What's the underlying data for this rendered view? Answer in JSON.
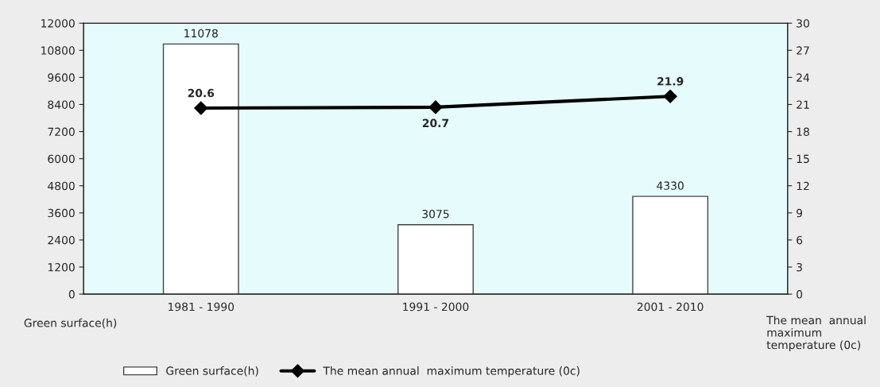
{
  "chart_data": {
    "type": "bar",
    "categories": [
      "1981 - 1990",
      "1991 - 2000",
      "2001 - 2010"
    ],
    "series": [
      {
        "name": "Green surface(h)",
        "color": "#ffffff",
        "values": [
          11078,
          3075,
          4330
        ]
      },
      {
        "name": "The mean annual  maximum temperature (0c)",
        "type": "line",
        "axis": "y2",
        "color": "#000000",
        "marker": "diamond",
        "line_style": "solid",
        "values": [
          20.6,
          20.7,
          21.9
        ]
      }
    ],
    "ylabel": "Green surface(h)",
    "y2label": "The mean  annual\nmaximum\ntemperature (0c)",
    "ylim": [
      0,
      12000
    ],
    "yticks": [
      0,
      1200,
      2400,
      3600,
      4800,
      6000,
      7200,
      8400,
      9600,
      10800,
      12000
    ],
    "y2lim": [
      0,
      30
    ],
    "y2ticks": [
      0,
      3,
      6,
      9,
      12,
      15,
      18,
      21,
      24,
      27,
      30
    ],
    "data_labels": true,
    "legend": "bottom",
    "grid": false
  }
}
